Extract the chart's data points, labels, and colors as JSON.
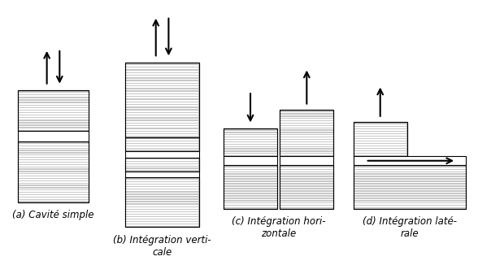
{
  "bg_color": "#ffffff",
  "stripe_color": "#c8c8c8",
  "border_color": "#000000",
  "labels": [
    "(a) Cavité simple",
    "(b) Intégration verti-\ncale",
    "(c) Intégration hori-\nzontale",
    "(d) Intégration laté-\nrale"
  ],
  "fig_width": 6.04,
  "fig_height": 3.26,
  "font_size": 8.5,
  "xlim": [
    0,
    10
  ],
  "ylim": [
    0,
    8.5
  ]
}
